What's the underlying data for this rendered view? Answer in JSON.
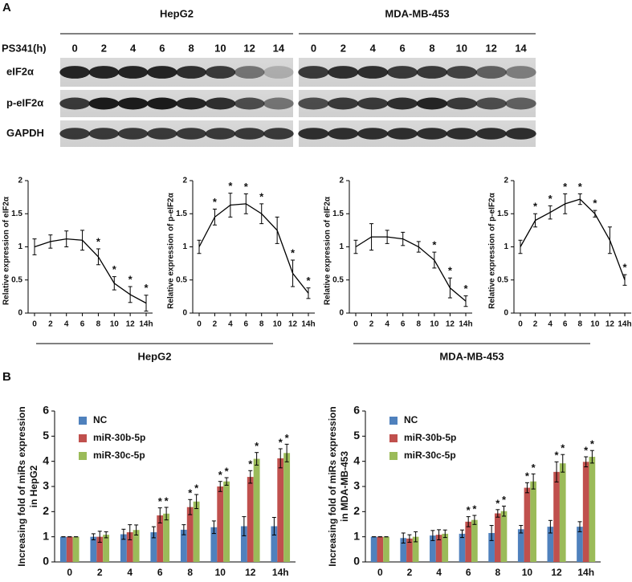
{
  "figure": {
    "panel_a_label": "A",
    "panel_b_label": "B",
    "time_label": "PS341(h)",
    "groups": [
      {
        "name": "HepG2",
        "lanes": [
          "0",
          "2",
          "4",
          "6",
          "8",
          "10",
          "12",
          "14"
        ]
      },
      {
        "name": "MDA-MB-453",
        "lanes": [
          "0",
          "2",
          "4",
          "6",
          "8",
          "10",
          "12",
          "14"
        ]
      }
    ],
    "rows": [
      "eIF2α",
      "p-eIF2α",
      "GAPDH"
    ],
    "line_groups": [
      "HepG2",
      "MDA-MB-453"
    ]
  },
  "chart_data": [
    {
      "type": "line",
      "ylabel": "Relative expression of eIF2α",
      "categories": [
        "0",
        "2",
        "4",
        "6",
        "8",
        "10",
        "12",
        "14h"
      ],
      "values": [
        1,
        1.08,
        1.12,
        1.1,
        0.85,
        0.45,
        0.28,
        0.15
      ],
      "errors": [
        0.12,
        0.1,
        0.12,
        0.15,
        0.12,
        0.1,
        0.12,
        0.12
      ],
      "annotations": [
        null,
        null,
        null,
        null,
        "*",
        "*",
        "*",
        "*"
      ],
      "color": "#000000",
      "ylim": [
        0,
        2
      ],
      "yticks": [
        0,
        0.5,
        1,
        1.5,
        2
      ]
    },
    {
      "type": "line",
      "ylabel": "Relative expression of p-eIF2α",
      "categories": [
        "0",
        "2",
        "4",
        "6",
        "8",
        "10",
        "12",
        "14h"
      ],
      "values": [
        1,
        1.45,
        1.63,
        1.65,
        1.5,
        1.25,
        0.6,
        0.3
      ],
      "errors": [
        0.1,
        0.12,
        0.18,
        0.15,
        0.15,
        0.2,
        0.2,
        0.08
      ],
      "annotations": [
        null,
        "*",
        "*",
        "*",
        "*",
        null,
        "*",
        "*"
      ],
      "color": "#000000",
      "ylim": [
        0,
        2
      ],
      "yticks": [
        0,
        0.5,
        1,
        1.5,
        2
      ]
    },
    {
      "type": "line",
      "ylabel": "Relative expression of eIF2α",
      "categories": [
        "0",
        "2",
        "4",
        "6",
        "8",
        "10",
        "12",
        "14h"
      ],
      "values": [
        1,
        1.15,
        1.15,
        1.12,
        1.0,
        0.8,
        0.38,
        0.18
      ],
      "errors": [
        0.1,
        0.2,
        0.1,
        0.1,
        0.08,
        0.12,
        0.15,
        0.08
      ],
      "annotations": [
        null,
        null,
        null,
        null,
        null,
        "*",
        "*",
        "*"
      ],
      "color": "#000000",
      "ylim": [
        0,
        2
      ],
      "yticks": [
        0,
        0.5,
        1,
        1.5,
        2
      ]
    },
    {
      "type": "line",
      "ylabel": "Relative expression of p-eIF2α",
      "categories": [
        "0",
        "2",
        "4",
        "6",
        "8",
        "10",
        "12",
        "14h"
      ],
      "values": [
        1,
        1.4,
        1.52,
        1.65,
        1.72,
        1.5,
        1.1,
        0.5
      ],
      "errors": [
        0.1,
        0.1,
        0.1,
        0.15,
        0.08,
        0.05,
        0.2,
        0.08
      ],
      "annotations": [
        null,
        "*",
        "*",
        "*",
        "*",
        "*",
        null,
        "*"
      ],
      "color": "#000000",
      "ylim": [
        0,
        2
      ],
      "yticks": [
        0,
        0.5,
        1,
        1.5,
        2
      ]
    },
    {
      "type": "bar",
      "ylabel": [
        "Increasing fold of miRs expression",
        "in HepG2"
      ],
      "categories": [
        "0",
        "2",
        "4",
        "6",
        "8",
        "10",
        "12",
        "14h"
      ],
      "ylim": [
        0,
        6
      ],
      "yticks": [
        0,
        1,
        2,
        3,
        4,
        5,
        6
      ],
      "legend": "upper left",
      "series": [
        {
          "name": "NC",
          "color": "#4f81bd",
          "values": [
            1,
            1,
            1.1,
            1.18,
            1.28,
            1.38,
            1.42,
            1.42
          ],
          "errors": [
            0,
            0.12,
            0.2,
            0.22,
            0.2,
            0.25,
            0.38,
            0.35
          ],
          "annotations": [
            null,
            null,
            null,
            null,
            null,
            null,
            null,
            null
          ]
        },
        {
          "name": "miR-30b-5p",
          "color": "#c0504d",
          "values": [
            1,
            1,
            1.18,
            1.85,
            2.18,
            3.0,
            3.38,
            4.12
          ],
          "errors": [
            0,
            0.22,
            0.3,
            0.3,
            0.3,
            0.2,
            0.25,
            0.38
          ],
          "annotations": [
            null,
            null,
            null,
            "*",
            "*",
            "*",
            "*",
            "*"
          ]
        },
        {
          "name": "miR-30c-5p",
          "color": "#9bbb59",
          "values": [
            1,
            1.08,
            1.27,
            1.92,
            2.4,
            3.2,
            4.1,
            4.33
          ],
          "errors": [
            0,
            0.12,
            0.2,
            0.25,
            0.28,
            0.15,
            0.25,
            0.35
          ],
          "annotations": [
            null,
            null,
            null,
            "*",
            "*",
            "*",
            "*",
            "*"
          ]
        }
      ]
    },
    {
      "type": "bar",
      "ylabel": [
        "Increasing fold of miRs expression",
        "in MDA-MB-453"
      ],
      "categories": [
        "0",
        "2",
        "4",
        "6",
        "8",
        "10",
        "12",
        "14h"
      ],
      "ylim": [
        0,
        6
      ],
      "yticks": [
        0,
        1,
        2,
        3,
        4,
        5,
        6
      ],
      "legend": "upper left",
      "series": [
        {
          "name": "NC",
          "color": "#4f81bd",
          "values": [
            1,
            0.95,
            1.05,
            1.12,
            1.15,
            1.3,
            1.4,
            1.4
          ],
          "errors": [
            0,
            0.2,
            0.2,
            0.15,
            0.3,
            0.15,
            0.25,
            0.2
          ],
          "annotations": [
            null,
            null,
            null,
            null,
            null,
            null,
            null,
            null
          ]
        },
        {
          "name": "miR-30b-5p",
          "color": "#c0504d",
          "values": [
            1,
            0.93,
            1.08,
            1.6,
            1.93,
            2.95,
            3.58,
            3.98
          ],
          "errors": [
            0,
            0.15,
            0.2,
            0.2,
            0.15,
            0.2,
            0.4,
            0.2
          ],
          "annotations": [
            null,
            null,
            null,
            "*",
            "*",
            "*",
            "*",
            "*"
          ]
        },
        {
          "name": "miR-30c-5p",
          "color": "#9bbb59",
          "values": [
            1,
            1.0,
            1.12,
            1.67,
            2.02,
            3.2,
            3.92,
            4.18
          ],
          "errors": [
            0,
            0.2,
            0.15,
            0.18,
            0.2,
            0.3,
            0.35,
            0.25
          ],
          "annotations": [
            null,
            null,
            null,
            "*",
            "*",
            "*",
            "*",
            "*"
          ]
        }
      ]
    }
  ]
}
